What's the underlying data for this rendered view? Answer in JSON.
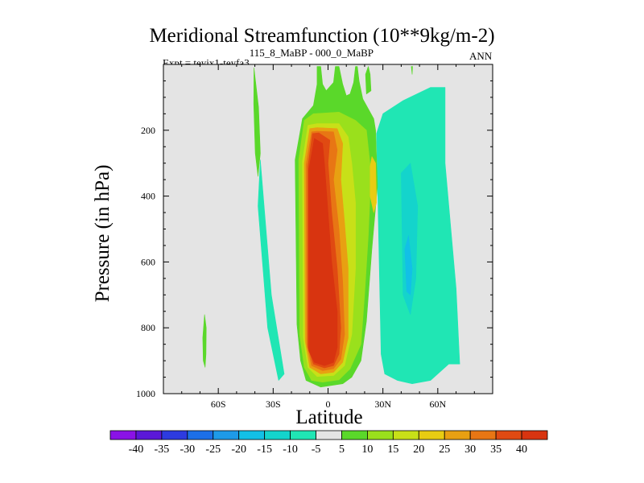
{
  "chart_data": {
    "type": "contour",
    "title": "Meridional Streamfunction (10**9kg/m-2)",
    "subtitle_left": "Expt = teyix1-teyfa3",
    "subtitle_left_super": "115_8_MaBP - 000_0_MaBP",
    "subtitle_right": "ANN",
    "xlabel": "Latitude",
    "ylabel": "Pressure (in hPa)",
    "xlim": [
      -90,
      90
    ],
    "ylim": [
      1000,
      0
    ],
    "x_ticks": [
      {
        "value": -60,
        "label": "60S"
      },
      {
        "value": -30,
        "label": "30S"
      },
      {
        "value": 0,
        "label": "0"
      },
      {
        "value": 30,
        "label": "30N"
      },
      {
        "value": 60,
        "label": "60N"
      }
    ],
    "y_ticks": [
      {
        "value": 200,
        "label": "200"
      },
      {
        "value": 400,
        "label": "400"
      },
      {
        "value": 600,
        "label": "600"
      },
      {
        "value": 800,
        "label": "800"
      },
      {
        "value": 1000,
        "label": "1000"
      }
    ],
    "levels": [
      -40,
      -35,
      -30,
      -25,
      -20,
      -15,
      -10,
      -5,
      5,
      10,
      15,
      20,
      25,
      30,
      35,
      40
    ],
    "colorbar_labels": [
      "-40",
      "-35",
      "-30",
      "-25",
      "-20",
      "-15",
      "-10",
      "-5",
      "5",
      "10",
      "15",
      "20",
      "25",
      "30",
      "35",
      "40"
    ],
    "colors": [
      "#8a12e6",
      "#5b18d8",
      "#2d3be0",
      "#1c6fe8",
      "#1e9ae8",
      "#12c0e6",
      "#14d4cc",
      "#20e6b4",
      "#e4e4e4",
      "#5ad82a",
      "#9ae01c",
      "#c8e018",
      "#e8cc12",
      "#e8a012",
      "#e87614",
      "#e04a12",
      "#d83410"
    ],
    "missing_color": "#e4e4e4",
    "regions": [
      {
        "name": "green-cell-upper-left",
        "level_bin": 9,
        "points": [
          [
            -40.5,
            10
          ],
          [
            -38,
            130
          ],
          [
            -37,
            270
          ],
          [
            -38.3,
            340
          ],
          [
            -39.8,
            270
          ],
          [
            -40.6,
            120
          ]
        ]
      },
      {
        "name": "cyan-band-left",
        "level_bin": 7,
        "points": [
          [
            -37,
            290
          ],
          [
            -31,
            700
          ],
          [
            -24,
            940
          ],
          [
            -27,
            960
          ],
          [
            -33,
            800
          ],
          [
            -38.3,
            430
          ]
        ]
      },
      {
        "name": "cyan-wide-right",
        "level_bin": 7,
        "points": [
          [
            26.5,
            210
          ],
          [
            30,
            150
          ],
          [
            41,
            110
          ],
          [
            56,
            70
          ],
          [
            64,
            70
          ],
          [
            64,
            300
          ],
          [
            70,
            680
          ],
          [
            72,
            910
          ],
          [
            66,
            910
          ],
          [
            56,
            960
          ],
          [
            46,
            970
          ],
          [
            38,
            960
          ],
          [
            31,
            940
          ],
          [
            29,
            880
          ]
        ]
      },
      {
        "name": "blue-core-right",
        "level_bin": 6,
        "points": [
          [
            40,
            330
          ],
          [
            45,
            300
          ],
          [
            49,
            430
          ],
          [
            48,
            650
          ],
          [
            45,
            760
          ],
          [
            41,
            700
          ]
        ]
      },
      {
        "name": "blue-inner-right",
        "level_bin": 5,
        "points": [
          [
            42,
            560
          ],
          [
            44,
            520
          ],
          [
            46,
            620
          ],
          [
            45,
            700
          ],
          [
            43,
            690
          ]
        ]
      },
      {
        "name": "green-column",
        "level_bin": 9,
        "points": [
          [
            -6,
            6
          ],
          [
            -6,
            60
          ],
          [
            -8,
            125
          ],
          [
            -14,
            165
          ],
          [
            -18,
            290
          ],
          [
            -17,
            790
          ],
          [
            -15,
            900
          ],
          [
            -12,
            960
          ],
          [
            -4,
            980
          ],
          [
            8,
            970
          ],
          [
            13,
            950
          ],
          [
            18,
            900
          ],
          [
            21,
            780
          ],
          [
            24,
            560
          ],
          [
            27,
            370
          ],
          [
            26,
            200
          ],
          [
            25,
            165
          ],
          [
            19,
            105
          ],
          [
            17,
            50
          ],
          [
            16,
            6
          ],
          [
            15,
            6
          ],
          [
            14,
            55
          ],
          [
            12,
            90
          ],
          [
            10,
            95
          ],
          [
            8,
            60
          ],
          [
            6,
            6
          ],
          [
            4,
            6
          ],
          [
            3,
            55
          ],
          [
            -1,
            80
          ],
          [
            -3,
            60
          ],
          [
            -4,
            6
          ]
        ]
      },
      {
        "name": "lime-shell",
        "level_bin": 10,
        "points": [
          [
            -13,
            170
          ],
          [
            -16,
            290
          ],
          [
            -15.5,
            820
          ],
          [
            -13,
            920
          ],
          [
            -9,
            960
          ],
          [
            -3,
            965
          ],
          [
            6,
            958
          ],
          [
            12,
            925
          ],
          [
            18,
            850
          ],
          [
            20,
            700
          ],
          [
            22,
            520
          ],
          [
            23.5,
            330
          ],
          [
            21,
            200
          ],
          [
            15,
            170
          ],
          [
            6,
            145
          ],
          [
            -8,
            150
          ]
        ]
      },
      {
        "name": "yellow-green-shell",
        "level_bin": 11,
        "points": [
          [
            -11,
            185
          ],
          [
            -14,
            295
          ],
          [
            -13.5,
            830
          ],
          [
            -11,
            920
          ],
          [
            -6,
            948
          ],
          [
            3,
            945
          ],
          [
            9,
            915
          ],
          [
            13,
            820
          ],
          [
            15,
            620
          ],
          [
            15,
            420
          ],
          [
            13,
            300
          ],
          [
            11,
            220
          ],
          [
            6,
            180
          ],
          [
            -6,
            180
          ]
        ]
      },
      {
        "name": "yellow-cell-right",
        "level_bin": 12,
        "points": [
          [
            24,
            280
          ],
          [
            26,
            300
          ],
          [
            26.5,
            420
          ],
          [
            25,
            450
          ],
          [
            23,
            400
          ],
          [
            23,
            310
          ]
        ]
      },
      {
        "name": "gold-shell",
        "level_bin": 13,
        "points": [
          [
            -10,
            195
          ],
          [
            -13,
            300
          ],
          [
            -12.5,
            840
          ],
          [
            -10,
            920
          ],
          [
            -4,
            940
          ],
          [
            3,
            935
          ],
          [
            8,
            905
          ],
          [
            11,
            830
          ],
          [
            11,
            620
          ],
          [
            9,
            480
          ],
          [
            7,
            350
          ],
          [
            8,
            240
          ],
          [
            5,
            195
          ],
          [
            -6,
            192
          ]
        ]
      },
      {
        "name": "orange-shell",
        "level_bin": 14,
        "points": [
          [
            -9,
            205
          ],
          [
            -12,
            305
          ],
          [
            -11.6,
            850
          ],
          [
            -9,
            915
          ],
          [
            -3,
            930
          ],
          [
            3,
            924
          ],
          [
            7,
            895
          ],
          [
            9,
            820
          ],
          [
            8,
            660
          ],
          [
            6,
            500
          ],
          [
            3,
            350
          ],
          [
            5,
            260
          ],
          [
            3,
            205
          ],
          [
            -6,
            203
          ]
        ]
      },
      {
        "name": "dark-orange-shell",
        "level_bin": 15,
        "points": [
          [
            -8.5,
            210
          ],
          [
            -11,
            310
          ],
          [
            -11,
            860
          ],
          [
            -8,
            910
          ],
          [
            -2,
            922
          ],
          [
            3,
            915
          ],
          [
            6,
            880
          ],
          [
            7,
            800
          ],
          [
            5,
            620
          ],
          [
            2,
            450
          ],
          [
            0,
            300
          ],
          [
            1,
            230
          ],
          [
            -5,
            208
          ]
        ]
      },
      {
        "name": "red-core",
        "level_bin": 16,
        "points": [
          [
            -7.5,
            225
          ],
          [
            -10.5,
            320
          ],
          [
            -10.5,
            870
          ],
          [
            -7.5,
            905
          ],
          [
            -2,
            915
          ],
          [
            3,
            905
          ],
          [
            5,
            860
          ],
          [
            5,
            750
          ],
          [
            2,
            600
          ],
          [
            0,
            450
          ],
          [
            -2,
            300
          ],
          [
            -3,
            240
          ]
        ]
      },
      {
        "name": "green-stem-left",
        "level_bin": 9,
        "points": [
          [
            -67.5,
            760
          ],
          [
            -66.6,
            800
          ],
          [
            -66.7,
            880
          ],
          [
            -67.2,
            920
          ],
          [
            -68.2,
            900
          ],
          [
            -68.5,
            830
          ]
        ]
      },
      {
        "name": "green-patch-top",
        "level_bin": 9,
        "points": [
          [
            22,
            6
          ],
          [
            23,
            30
          ],
          [
            23.5,
            80
          ],
          [
            21,
            90
          ],
          [
            20.5,
            30
          ]
        ]
      },
      {
        "name": "green-sliver-top-right",
        "level_bin": 9,
        "points": [
          [
            45.5,
            6
          ],
          [
            46.2,
            6
          ],
          [
            46,
            30
          ]
        ]
      }
    ]
  }
}
